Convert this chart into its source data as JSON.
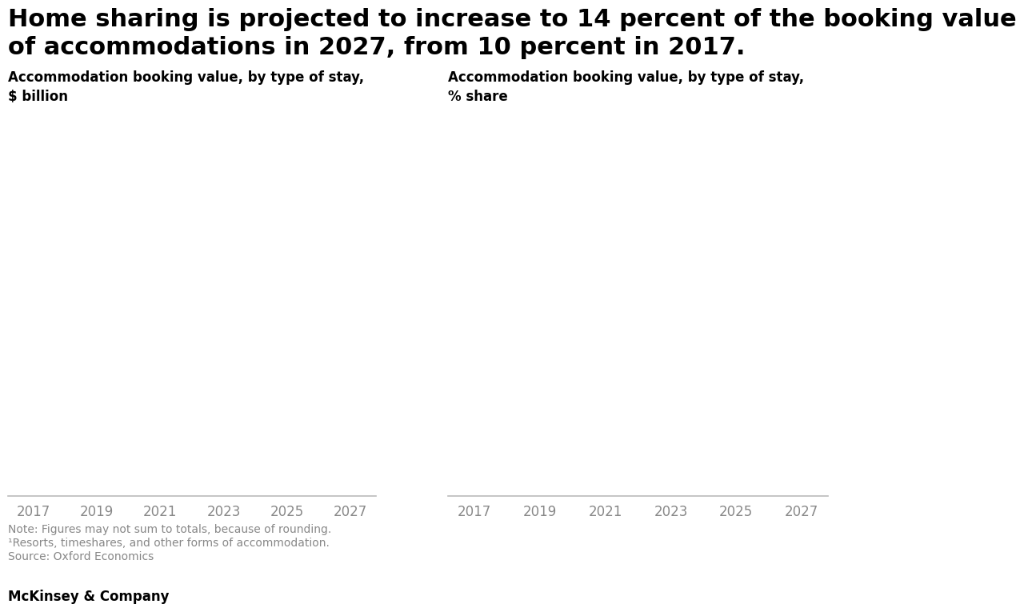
{
  "title_line1": "Home sharing is projected to increase to 14 percent of the booking value",
  "title_line2": "of accommodations in 2027, from 10 percent in 2017.",
  "left_subtitle_line1": "Accommodation booking value, by type of stay,",
  "left_subtitle_line2": "$ billion",
  "right_subtitle_line1": "Accommodation booking value, by type of stay,",
  "right_subtitle_line2": "% share",
  "x_ticks": [
    2017,
    2019,
    2021,
    2023,
    2025,
    2027
  ],
  "note_line1": "Note: Figures may not sum to totals, because of rounding.",
  "note_line2": "¹Resorts, timeshares, and other forms of accommodation.",
  "note_line3": "Source: Oxford Economics",
  "footer": "McKinsey & Company",
  "background_color": "#ffffff",
  "title_fontsize": 22,
  "subtitle_fontsize": 12,
  "note_fontsize": 10,
  "footer_fontsize": 12,
  "axis_color": "#bbbbbb",
  "tick_label_color": "#888888",
  "tick_label_fontsize": 12,
  "note_color": "#888888",
  "title_color": "#000000",
  "subtitle_color": "#000000",
  "footer_color": "#000000"
}
